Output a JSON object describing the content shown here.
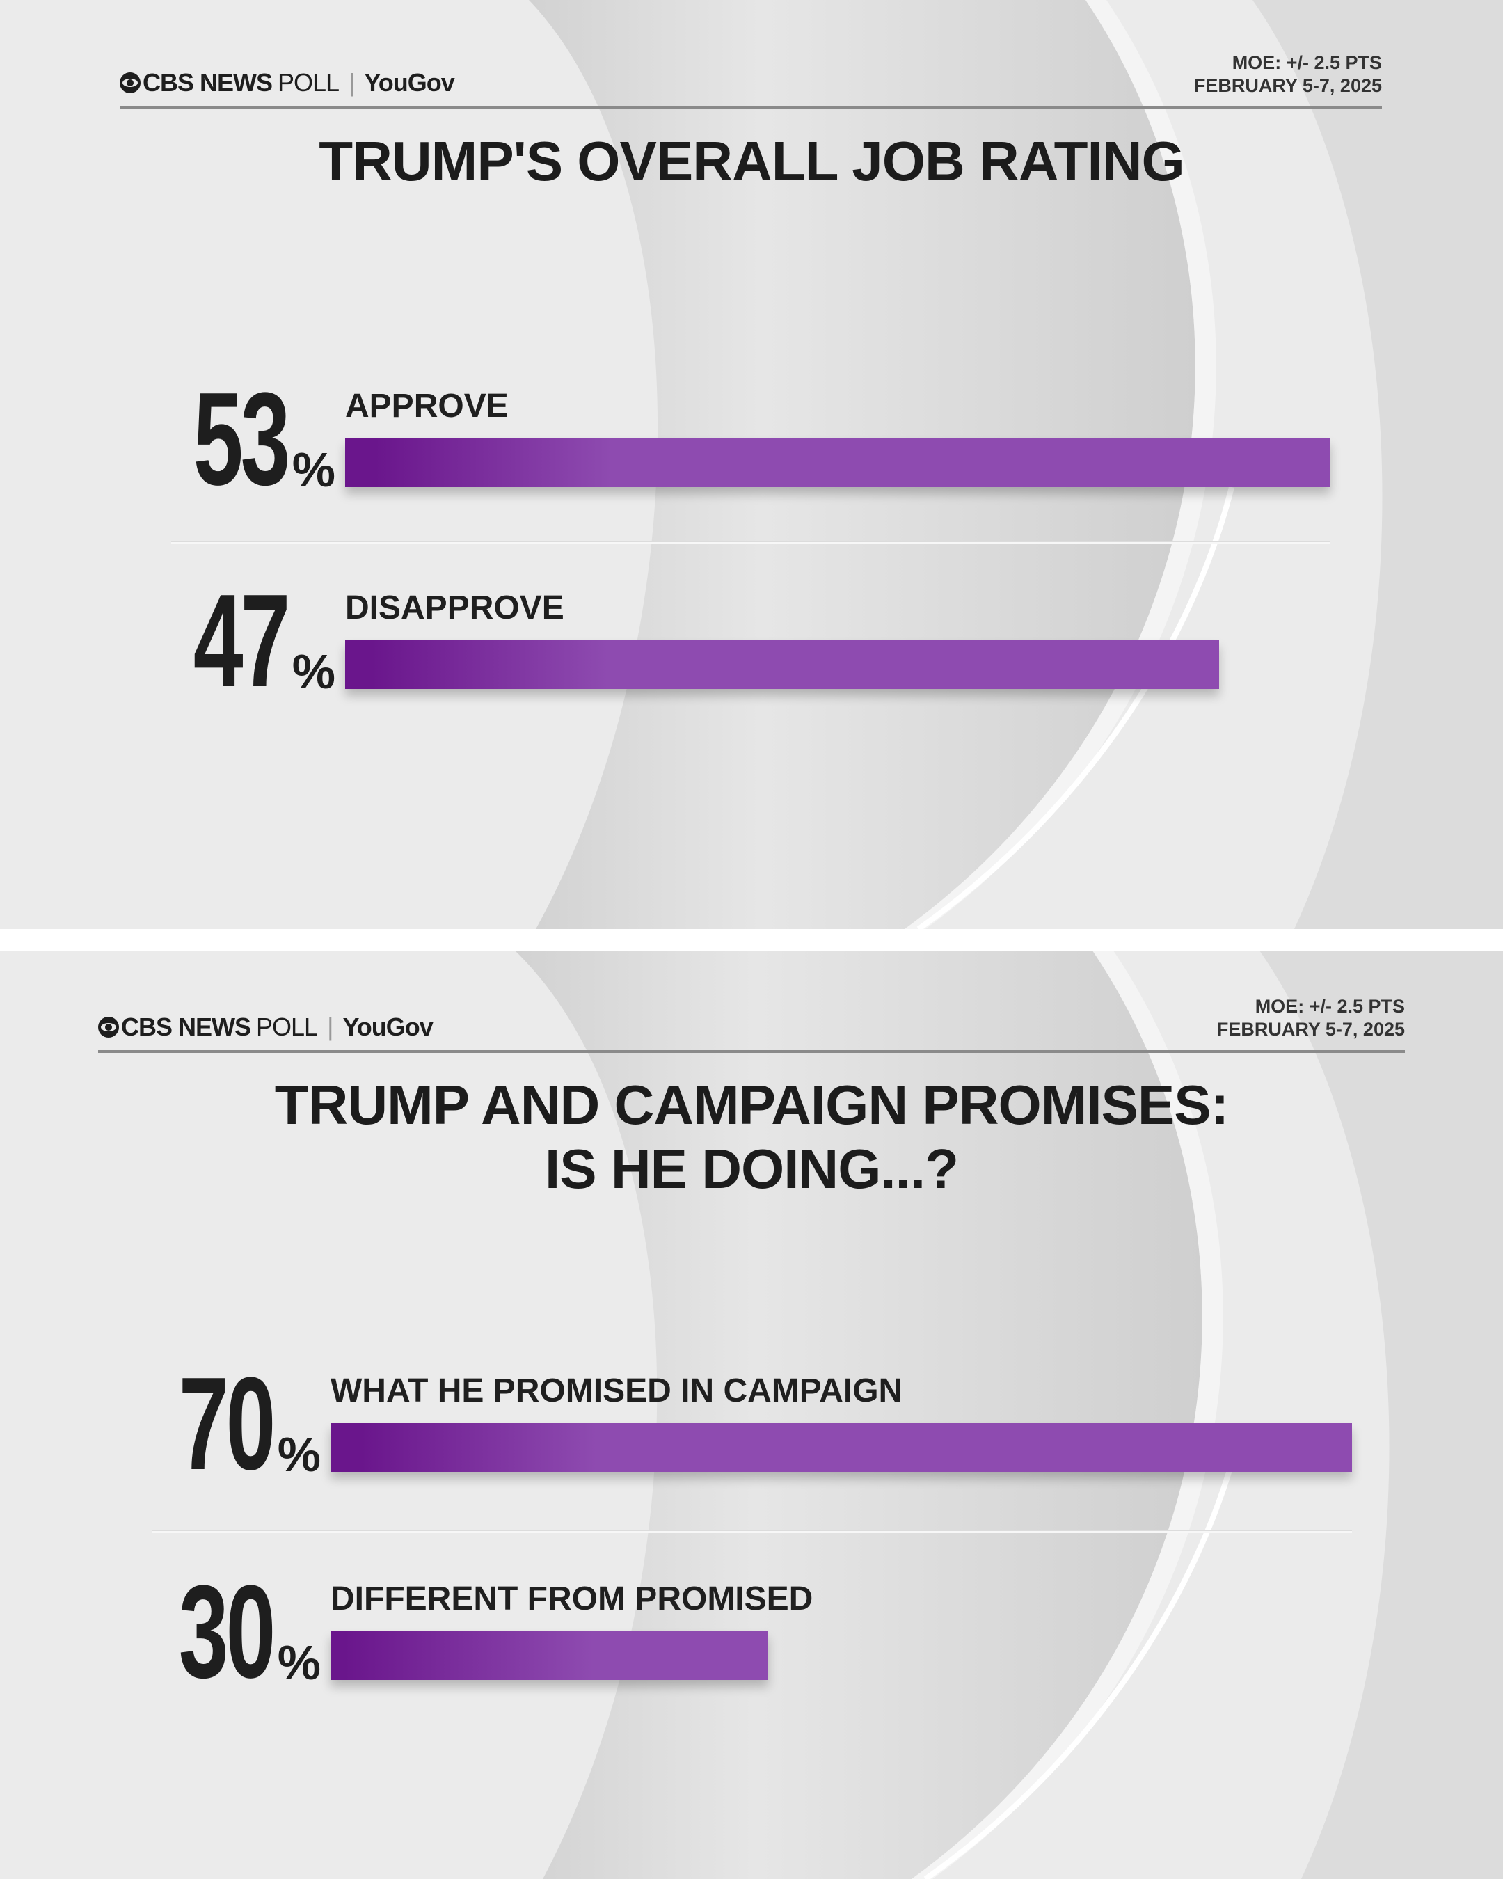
{
  "panels": [
    {
      "logo": {
        "brand": "CBS NEWS",
        "poll": "POLL",
        "separator": "|",
        "partner": "YouGov"
      },
      "moe": "MOE: +/- 2.5 PTS",
      "dates": "FEBRUARY 5-7, 2025",
      "title_lines": [
        "TRUMP'S OVERALL JOB RATING"
      ]
    },
    {
      "logo": {
        "brand": "CBS NEWS",
        "poll": "POLL",
        "separator": "|",
        "partner": "YouGov"
      },
      "moe": "MOE: +/- 2.5 PTS",
      "dates": "FEBRUARY 5-7, 2025",
      "title_lines": [
        "TRUMP AND CAMPAIGN PROMISES:",
        "IS HE DOING...?"
      ]
    }
  ],
  "colors": {
    "bar_dark": "#6a168c",
    "bar_light": "#8e4bb0",
    "text": "#1e1e1e",
    "background": "#ebebeb"
  },
  "chart_data": [
    {
      "type": "bar",
      "orientation": "horizontal",
      "title": "TRUMP'S OVERALL JOB RATING",
      "categories": [
        "APPROVE",
        "DISAPPROVE"
      ],
      "values": [
        53,
        47
      ],
      "unit": "%",
      "value_labels": [
        "53",
        "47"
      ],
      "grid": false
    },
    {
      "type": "bar",
      "orientation": "horizontal",
      "title": "TRUMP AND CAMPAIGN PROMISES: IS HE DOING...?",
      "categories": [
        "WHAT HE PROMISED IN CAMPAIGN",
        "DIFFERENT FROM PROMISED"
      ],
      "values": [
        70,
        30
      ],
      "unit": "%",
      "value_labels": [
        "70",
        "30"
      ],
      "grid": false
    }
  ]
}
